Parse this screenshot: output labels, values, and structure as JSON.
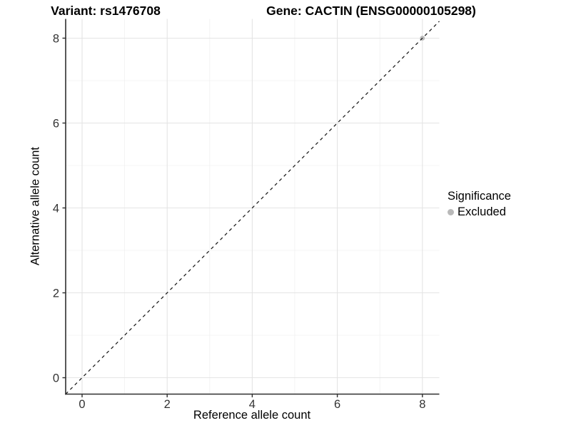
{
  "chart_data": {
    "type": "scatter",
    "title_left": "Variant: rs1476708",
    "title_right": "Gene: CACTIN (ENSG00000105298)",
    "xlabel": "Reference allele count",
    "ylabel": "Alternative allele count",
    "xlim": [
      -0.39,
      8.4
    ],
    "ylim": [
      -0.39,
      8.45
    ],
    "xticks": [
      0,
      2,
      4,
      6,
      8
    ],
    "yticks": [
      0,
      2,
      4,
      6,
      8
    ],
    "xminor": [
      1,
      3,
      5,
      7
    ],
    "yminor": [
      1,
      3,
      5,
      7
    ],
    "grid": "major and minor gridlines on white background",
    "series": [
      {
        "name": "Excluded",
        "color": "#b9b9b9",
        "points": [
          {
            "x": 8,
            "y": 8
          }
        ]
      }
    ],
    "reference_line": {
      "kind": "identity y = x",
      "style": "dashed",
      "color": "#1a1a1a"
    },
    "legend": {
      "position": "right",
      "title": "Significance",
      "items": [
        {
          "label": "Excluded",
          "color": "#b9b9b9"
        }
      ]
    }
  },
  "colors": {
    "grid_major": "#e4e4e4",
    "grid_minor": "#f1f1f1",
    "axis_line": "#2f2f2f",
    "tick_mark": "#2f2f2f",
    "tick_text": "#333333"
  }
}
